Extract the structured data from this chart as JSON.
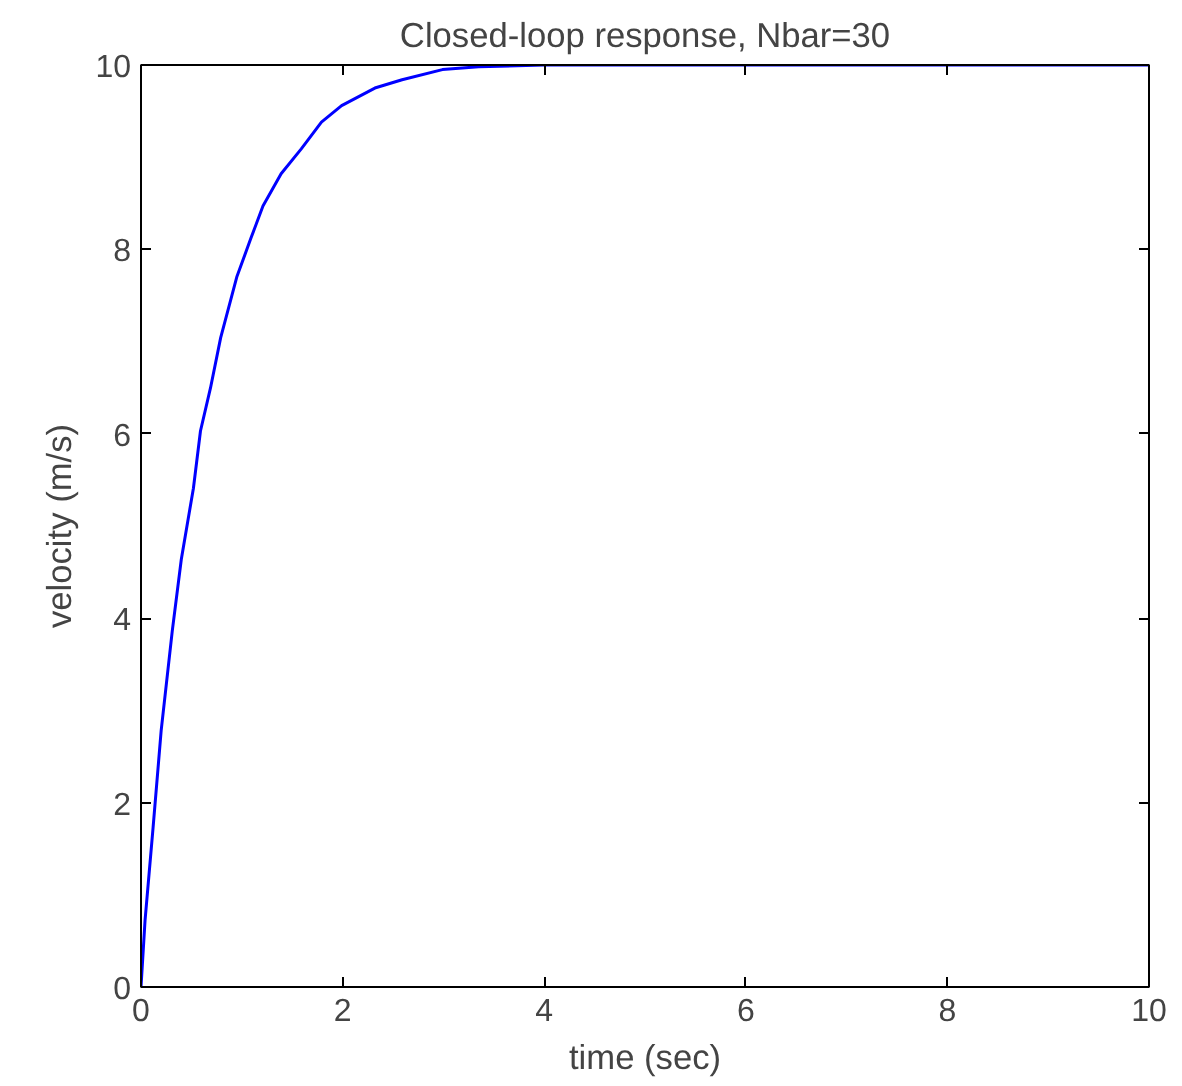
{
  "chart_data": {
    "type": "line",
    "title": "Closed-loop response, Nbar=30",
    "xlabel": "time (sec)",
    "ylabel": "velocity (m/s)",
    "x": [
      0,
      0.04,
      0.12,
      0.2,
      0.31,
      0.4,
      0.52,
      0.59,
      0.69,
      0.79,
      0.95,
      1.09,
      1.21,
      1.39,
      1.59,
      1.79,
      1.99,
      2.32,
      2.59,
      2.99,
      3.35,
      4,
      6,
      8,
      10
    ],
    "series": [
      {
        "color": "#0000ff",
        "values": [
          0,
          0.72,
          1.73,
          2.78,
          3.86,
          4.64,
          5.41,
          6.03,
          6.5,
          7.04,
          7.7,
          8.12,
          8.47,
          8.82,
          9.09,
          9.38,
          9.56,
          9.75,
          9.84,
          9.95,
          9.98,
          10,
          10,
          10,
          10
        ]
      }
    ],
    "xlim": [
      0,
      10
    ],
    "ylim": [
      0,
      10
    ],
    "xticks": [
      0,
      2,
      4,
      6,
      8,
      10
    ],
    "yticks": [
      0,
      2,
      4,
      6,
      8,
      10
    ],
    "grid": false,
    "marker": "none",
    "line_style": "solid"
  }
}
